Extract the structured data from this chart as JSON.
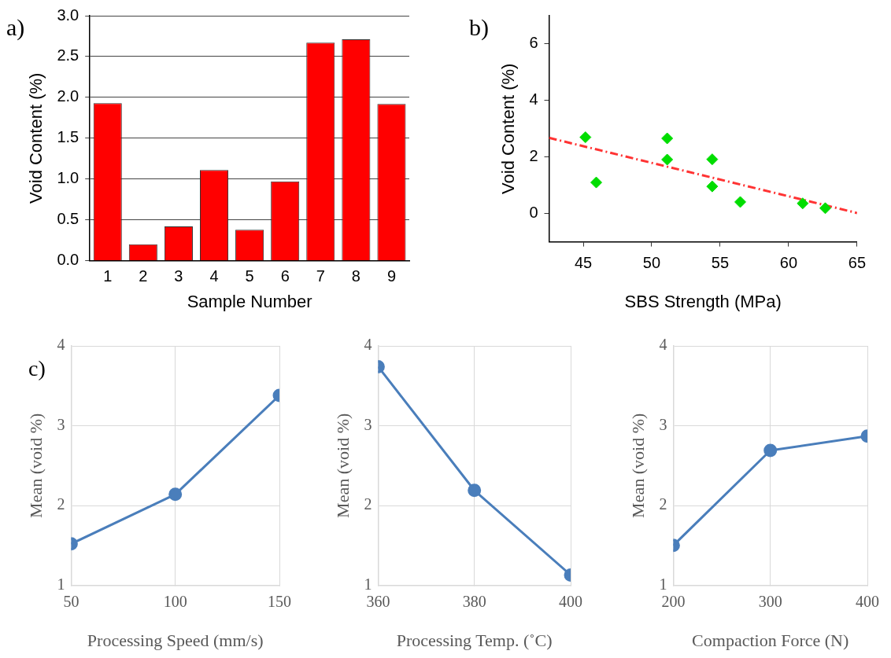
{
  "chart_data": [
    {
      "type": "bar",
      "xlabel": "Sample Number",
      "ylabel": "Void Content (%)",
      "categories": [
        "1",
        "2",
        "3",
        "4",
        "5",
        "6",
        "7",
        "8",
        "9"
      ],
      "values": [
        1.93,
        0.2,
        0.42,
        1.11,
        0.38,
        0.97,
        2.67,
        2.71,
        1.92
      ],
      "color": "#ff0000",
      "ylim": [
        0,
        3
      ],
      "yticks": [
        {
          "value": 0,
          "label": "0.0"
        },
        {
          "value": 0.5,
          "label": "0.5"
        },
        {
          "value": 1,
          "label": "1.0"
        },
        {
          "value": 1.5,
          "label": "1.5"
        },
        {
          "value": 2,
          "label": "2.0"
        },
        {
          "value": 2.5,
          "label": "2.5"
        },
        {
          "value": 3,
          "label": "3.0"
        }
      ],
      "grid": "y",
      "legend": false,
      "annotations": [
        "a)"
      ]
    },
    {
      "type": "scatter",
      "xlabel": "SBS Strength (MPa)",
      "ylabel": "Void Content (%)",
      "xlim": [
        42.5,
        65
      ],
      "xticks": [
        45,
        50,
        55,
        60,
        65
      ],
      "ylim": [
        -1,
        7
      ],
      "yticks": [
        0,
        2,
        4,
        6
      ],
      "grid": false,
      "legend": false,
      "marker": "diamond",
      "annotations": [
        "b)"
      ],
      "series": [
        {
          "type": "scatter",
          "color": "#00dd00",
          "x": [
            45.16,
            45.95,
            51.13,
            51.13,
            54.42,
            54.42,
            56.47,
            61.03,
            62.68
          ],
          "values": [
            2.7,
            1.1,
            2.66,
            1.91,
            1.92,
            0.96,
            0.41,
            0.36,
            0.19
          ]
        },
        {
          "type": "line",
          "color": "#ff3333",
          "line_style": "dashed",
          "marker": "none",
          "x": [
            42.5,
            65
          ],
          "values": [
            2.68,
            0.02
          ]
        }
      ]
    },
    {
      "type": "line",
      "xlabel": "Processing Speed (mm/s)",
      "ylabel": "Mean (void %)",
      "x": [
        50,
        100,
        150
      ],
      "values": [
        1.52,
        2.14,
        3.38
      ],
      "color": "#4a7ebb",
      "xlim": [
        50,
        150
      ],
      "xticks": [
        50,
        100,
        150
      ],
      "ylim": [
        1,
        4
      ],
      "yticks": [
        1,
        2,
        3,
        4
      ],
      "grid": true,
      "legend": false,
      "marker": "circle",
      "annotations": [
        "c)"
      ]
    },
    {
      "type": "line",
      "xlabel": "Processing Temp. (˚C)",
      "ylabel": "Mean (void %)",
      "x": [
        360,
        380,
        400
      ],
      "values": [
        3.74,
        2.19,
        1.13
      ],
      "color": "#4a7ebb",
      "xlim": [
        360,
        400
      ],
      "xticks": [
        360,
        380,
        400
      ],
      "ylim": [
        1,
        4
      ],
      "yticks": [
        1,
        2,
        3,
        4
      ],
      "grid": true,
      "legend": false,
      "marker": "circle"
    },
    {
      "type": "line",
      "xlabel": "Compaction Force (N)",
      "ylabel": "Mean (void %)",
      "x": [
        200,
        300,
        400
      ],
      "values": [
        1.5,
        2.69,
        2.87
      ],
      "color": "#4a7ebb",
      "xlim": [
        200,
        400
      ],
      "xticks": [
        200,
        300,
        400
      ],
      "ylim": [
        1,
        4
      ],
      "yticks": [
        1,
        2,
        3,
        4
      ],
      "grid": true,
      "legend": false,
      "marker": "circle"
    }
  ]
}
